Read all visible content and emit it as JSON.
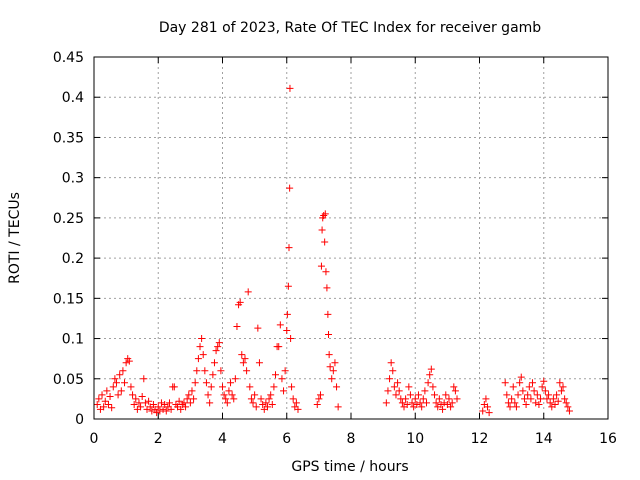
{
  "chart_data": {
    "type": "scatter",
    "title": "Day 281 of 2023, Rate Of TEC Index for receiver gamb",
    "xlabel": "GPS time / hours",
    "ylabel": "ROTI / TECUs",
    "xlim": [
      0,
      16
    ],
    "ylim": [
      0,
      0.45
    ],
    "xticks": [
      0,
      2,
      4,
      6,
      8,
      10,
      12,
      14,
      16
    ],
    "xtick_labels": [
      "0",
      "2",
      "4",
      "6",
      "8",
      "10",
      "12",
      "14",
      "16"
    ],
    "yticks": [
      0,
      0.05,
      0.1,
      0.15,
      0.2,
      0.25,
      0.3,
      0.35,
      0.4,
      0.45
    ],
    "ytick_labels": [
      "0",
      "0.05",
      "0.1",
      "0.15",
      "0.2",
      "0.25",
      "0.3",
      "0.35",
      "0.4",
      "0.45"
    ],
    "grid": true,
    "marker": "plus",
    "color": "#ff0000",
    "series": [
      {
        "name": "ROTI",
        "points": [
          [
            0.1,
            0.018
          ],
          [
            0.15,
            0.025
          ],
          [
            0.2,
            0.012
          ],
          [
            0.25,
            0.03
          ],
          [
            0.3,
            0.015
          ],
          [
            0.35,
            0.022
          ],
          [
            0.4,
            0.035
          ],
          [
            0.45,
            0.018
          ],
          [
            0.5,
            0.028
          ],
          [
            0.55,
            0.014
          ],
          [
            0.6,
            0.04
          ],
          [
            0.65,
            0.05
          ],
          [
            0.7,
            0.045
          ],
          [
            0.75,
            0.03
          ],
          [
            0.8,
            0.055
          ],
          [
            0.85,
            0.035
          ],
          [
            0.9,
            0.06
          ],
          [
            0.95,
            0.045
          ],
          [
            1.0,
            0.07
          ],
          [
            1.05,
            0.075
          ],
          [
            1.1,
            0.072
          ],
          [
            1.15,
            0.04
          ],
          [
            1.2,
            0.03
          ],
          [
            1.25,
            0.018
          ],
          [
            1.3,
            0.025
          ],
          [
            1.35,
            0.012
          ],
          [
            1.4,
            0.02
          ],
          [
            1.45,
            0.015
          ],
          [
            1.5,
            0.028
          ],
          [
            1.55,
            0.05
          ],
          [
            1.6,
            0.02
          ],
          [
            1.65,
            0.012
          ],
          [
            1.7,
            0.022
          ],
          [
            1.75,
            0.015
          ],
          [
            1.8,
            0.01
          ],
          [
            1.85,
            0.018
          ],
          [
            1.9,
            0.012
          ],
          [
            1.95,
            0.008
          ],
          [
            2.0,
            0.015
          ],
          [
            2.05,
            0.01
          ],
          [
            2.1,
            0.02
          ],
          [
            2.15,
            0.012
          ],
          [
            2.2,
            0.018
          ],
          [
            2.25,
            0.01
          ],
          [
            2.3,
            0.015
          ],
          [
            2.35,
            0.02
          ],
          [
            2.4,
            0.012
          ],
          [
            2.45,
            0.04
          ],
          [
            2.5,
            0.04
          ],
          [
            2.55,
            0.018
          ],
          [
            2.6,
            0.015
          ],
          [
            2.65,
            0.022
          ],
          [
            2.7,
            0.012
          ],
          [
            2.75,
            0.018
          ],
          [
            2.8,
            0.02
          ],
          [
            2.85,
            0.015
          ],
          [
            2.9,
            0.025
          ],
          [
            2.95,
            0.03
          ],
          [
            3.0,
            0.02
          ],
          [
            3.05,
            0.035
          ],
          [
            3.1,
            0.025
          ],
          [
            3.15,
            0.045
          ],
          [
            3.2,
            0.06
          ],
          [
            3.25,
            0.075
          ],
          [
            3.3,
            0.09
          ],
          [
            3.35,
            0.1
          ],
          [
            3.4,
            0.08
          ],
          [
            3.45,
            0.06
          ],
          [
            3.5,
            0.045
          ],
          [
            3.55,
            0.03
          ],
          [
            3.6,
            0.02
          ],
          [
            3.65,
            0.04
          ],
          [
            3.7,
            0.055
          ],
          [
            3.75,
            0.07
          ],
          [
            3.8,
            0.085
          ],
          [
            3.85,
            0.09
          ],
          [
            3.9,
            0.095
          ],
          [
            3.95,
            0.06
          ],
          [
            4.0,
            0.04
          ],
          [
            4.05,
            0.03
          ],
          [
            4.1,
            0.025
          ],
          [
            4.15,
            0.02
          ],
          [
            4.2,
            0.035
          ],
          [
            4.25,
            0.045
          ],
          [
            4.3,
            0.03
          ],
          [
            4.35,
            0.025
          ],
          [
            4.4,
            0.05
          ],
          [
            4.45,
            0.115
          ],
          [
            4.5,
            0.142
          ],
          [
            4.55,
            0.145
          ],
          [
            4.6,
            0.08
          ],
          [
            4.65,
            0.07
          ],
          [
            4.7,
            0.075
          ],
          [
            4.75,
            0.06
          ],
          [
            4.8,
            0.158
          ],
          [
            4.85,
            0.04
          ],
          [
            4.9,
            0.025
          ],
          [
            4.95,
            0.02
          ],
          [
            5.0,
            0.03
          ],
          [
            5.05,
            0.015
          ],
          [
            5.1,
            0.113
          ],
          [
            5.15,
            0.07
          ],
          [
            5.2,
            0.025
          ],
          [
            5.25,
            0.018
          ],
          [
            5.3,
            0.012
          ],
          [
            5.35,
            0.02
          ],
          [
            5.4,
            0.015
          ],
          [
            5.45,
            0.025
          ],
          [
            5.5,
            0.03
          ],
          [
            5.55,
            0.018
          ],
          [
            5.6,
            0.04
          ],
          [
            5.65,
            0.055
          ],
          [
            5.7,
            0.09
          ],
          [
            5.75,
            0.09
          ],
          [
            5.8,
            0.117
          ],
          [
            5.85,
            0.05
          ],
          [
            5.9,
            0.035
          ],
          [
            5.95,
            0.06
          ],
          [
            6.0,
            0.11
          ],
          [
            6.02,
            0.13
          ],
          [
            6.05,
            0.165
          ],
          [
            6.07,
            0.213
          ],
          [
            6.09,
            0.287
          ],
          [
            6.1,
            0.411
          ],
          [
            6.12,
            0.1
          ],
          [
            6.15,
            0.04
          ],
          [
            6.2,
            0.025
          ],
          [
            6.25,
            0.015
          ],
          [
            6.3,
            0.02
          ],
          [
            6.35,
            0.012
          ],
          [
            6.95,
            0.018
          ],
          [
            7.0,
            0.025
          ],
          [
            7.05,
            0.03
          ],
          [
            7.08,
            0.19
          ],
          [
            7.1,
            0.235
          ],
          [
            7.12,
            0.25
          ],
          [
            7.15,
            0.253
          ],
          [
            7.18,
            0.22
          ],
          [
            7.2,
            0.255
          ],
          [
            7.22,
            0.183
          ],
          [
            7.25,
            0.163
          ],
          [
            7.28,
            0.13
          ],
          [
            7.3,
            0.105
          ],
          [
            7.32,
            0.08
          ],
          [
            7.35,
            0.065
          ],
          [
            7.4,
            0.05
          ],
          [
            7.45,
            0.06
          ],
          [
            7.5,
            0.07
          ],
          [
            7.55,
            0.04
          ],
          [
            7.6,
            0.015
          ],
          [
            9.1,
            0.02
          ],
          [
            9.15,
            0.035
          ],
          [
            9.2,
            0.05
          ],
          [
            9.25,
            0.07
          ],
          [
            9.3,
            0.06
          ],
          [
            9.35,
            0.04
          ],
          [
            9.4,
            0.03
          ],
          [
            9.45,
            0.045
          ],
          [
            9.5,
            0.035
          ],
          [
            9.55,
            0.025
          ],
          [
            9.6,
            0.02
          ],
          [
            9.65,
            0.015
          ],
          [
            9.7,
            0.025
          ],
          [
            9.75,
            0.018
          ],
          [
            9.8,
            0.04
          ],
          [
            9.85,
            0.03
          ],
          [
            9.9,
            0.02
          ],
          [
            9.95,
            0.015
          ],
          [
            10.0,
            0.025
          ],
          [
            10.05,
            0.018
          ],
          [
            10.1,
            0.03
          ],
          [
            10.15,
            0.02
          ],
          [
            10.2,
            0.015
          ],
          [
            10.25,
            0.025
          ],
          [
            10.3,
            0.035
          ],
          [
            10.35,
            0.02
          ],
          [
            10.4,
            0.045
          ],
          [
            10.45,
            0.055
          ],
          [
            10.5,
            0.062
          ],
          [
            10.55,
            0.04
          ],
          [
            10.6,
            0.03
          ],
          [
            10.65,
            0.02
          ],
          [
            10.7,
            0.015
          ],
          [
            10.75,
            0.025
          ],
          [
            10.8,
            0.018
          ],
          [
            10.85,
            0.012
          ],
          [
            10.9,
            0.02
          ],
          [
            10.95,
            0.03
          ],
          [
            11.0,
            0.018
          ],
          [
            11.05,
            0.025
          ],
          [
            11.1,
            0.015
          ],
          [
            11.15,
            0.02
          ],
          [
            11.2,
            0.04
          ],
          [
            11.25,
            0.035
          ],
          [
            11.3,
            0.025
          ],
          [
            12.1,
            0.01
          ],
          [
            12.15,
            0.018
          ],
          [
            12.2,
            0.025
          ],
          [
            12.25,
            0.015
          ],
          [
            12.3,
            0.008
          ],
          [
            12.8,
            0.045
          ],
          [
            12.85,
            0.03
          ],
          [
            12.9,
            0.02
          ],
          [
            12.95,
            0.015
          ],
          [
            13.0,
            0.025
          ],
          [
            13.05,
            0.04
          ],
          [
            13.1,
            0.02
          ],
          [
            13.15,
            0.015
          ],
          [
            13.2,
            0.03
          ],
          [
            13.25,
            0.045
          ],
          [
            13.3,
            0.052
          ],
          [
            13.35,
            0.035
          ],
          [
            13.4,
            0.025
          ],
          [
            13.45,
            0.018
          ],
          [
            13.5,
            0.03
          ],
          [
            13.55,
            0.04
          ],
          [
            13.6,
            0.025
          ],
          [
            13.65,
            0.045
          ],
          [
            13.7,
            0.035
          ],
          [
            13.75,
            0.02
          ],
          [
            13.8,
            0.03
          ],
          [
            13.85,
            0.018
          ],
          [
            13.9,
            0.025
          ],
          [
            13.95,
            0.04
          ],
          [
            14.0,
            0.047
          ],
          [
            14.05,
            0.035
          ],
          [
            14.1,
            0.025
          ],
          [
            14.15,
            0.03
          ],
          [
            14.2,
            0.02
          ],
          [
            14.25,
            0.015
          ],
          [
            14.3,
            0.025
          ],
          [
            14.35,
            0.018
          ],
          [
            14.4,
            0.03
          ],
          [
            14.45,
            0.022
          ],
          [
            14.5,
            0.045
          ],
          [
            14.55,
            0.035
          ],
          [
            14.6,
            0.04
          ],
          [
            14.65,
            0.025
          ],
          [
            14.7,
            0.02
          ],
          [
            14.75,
            0.015
          ],
          [
            14.8,
            0.01
          ]
        ]
      }
    ]
  }
}
